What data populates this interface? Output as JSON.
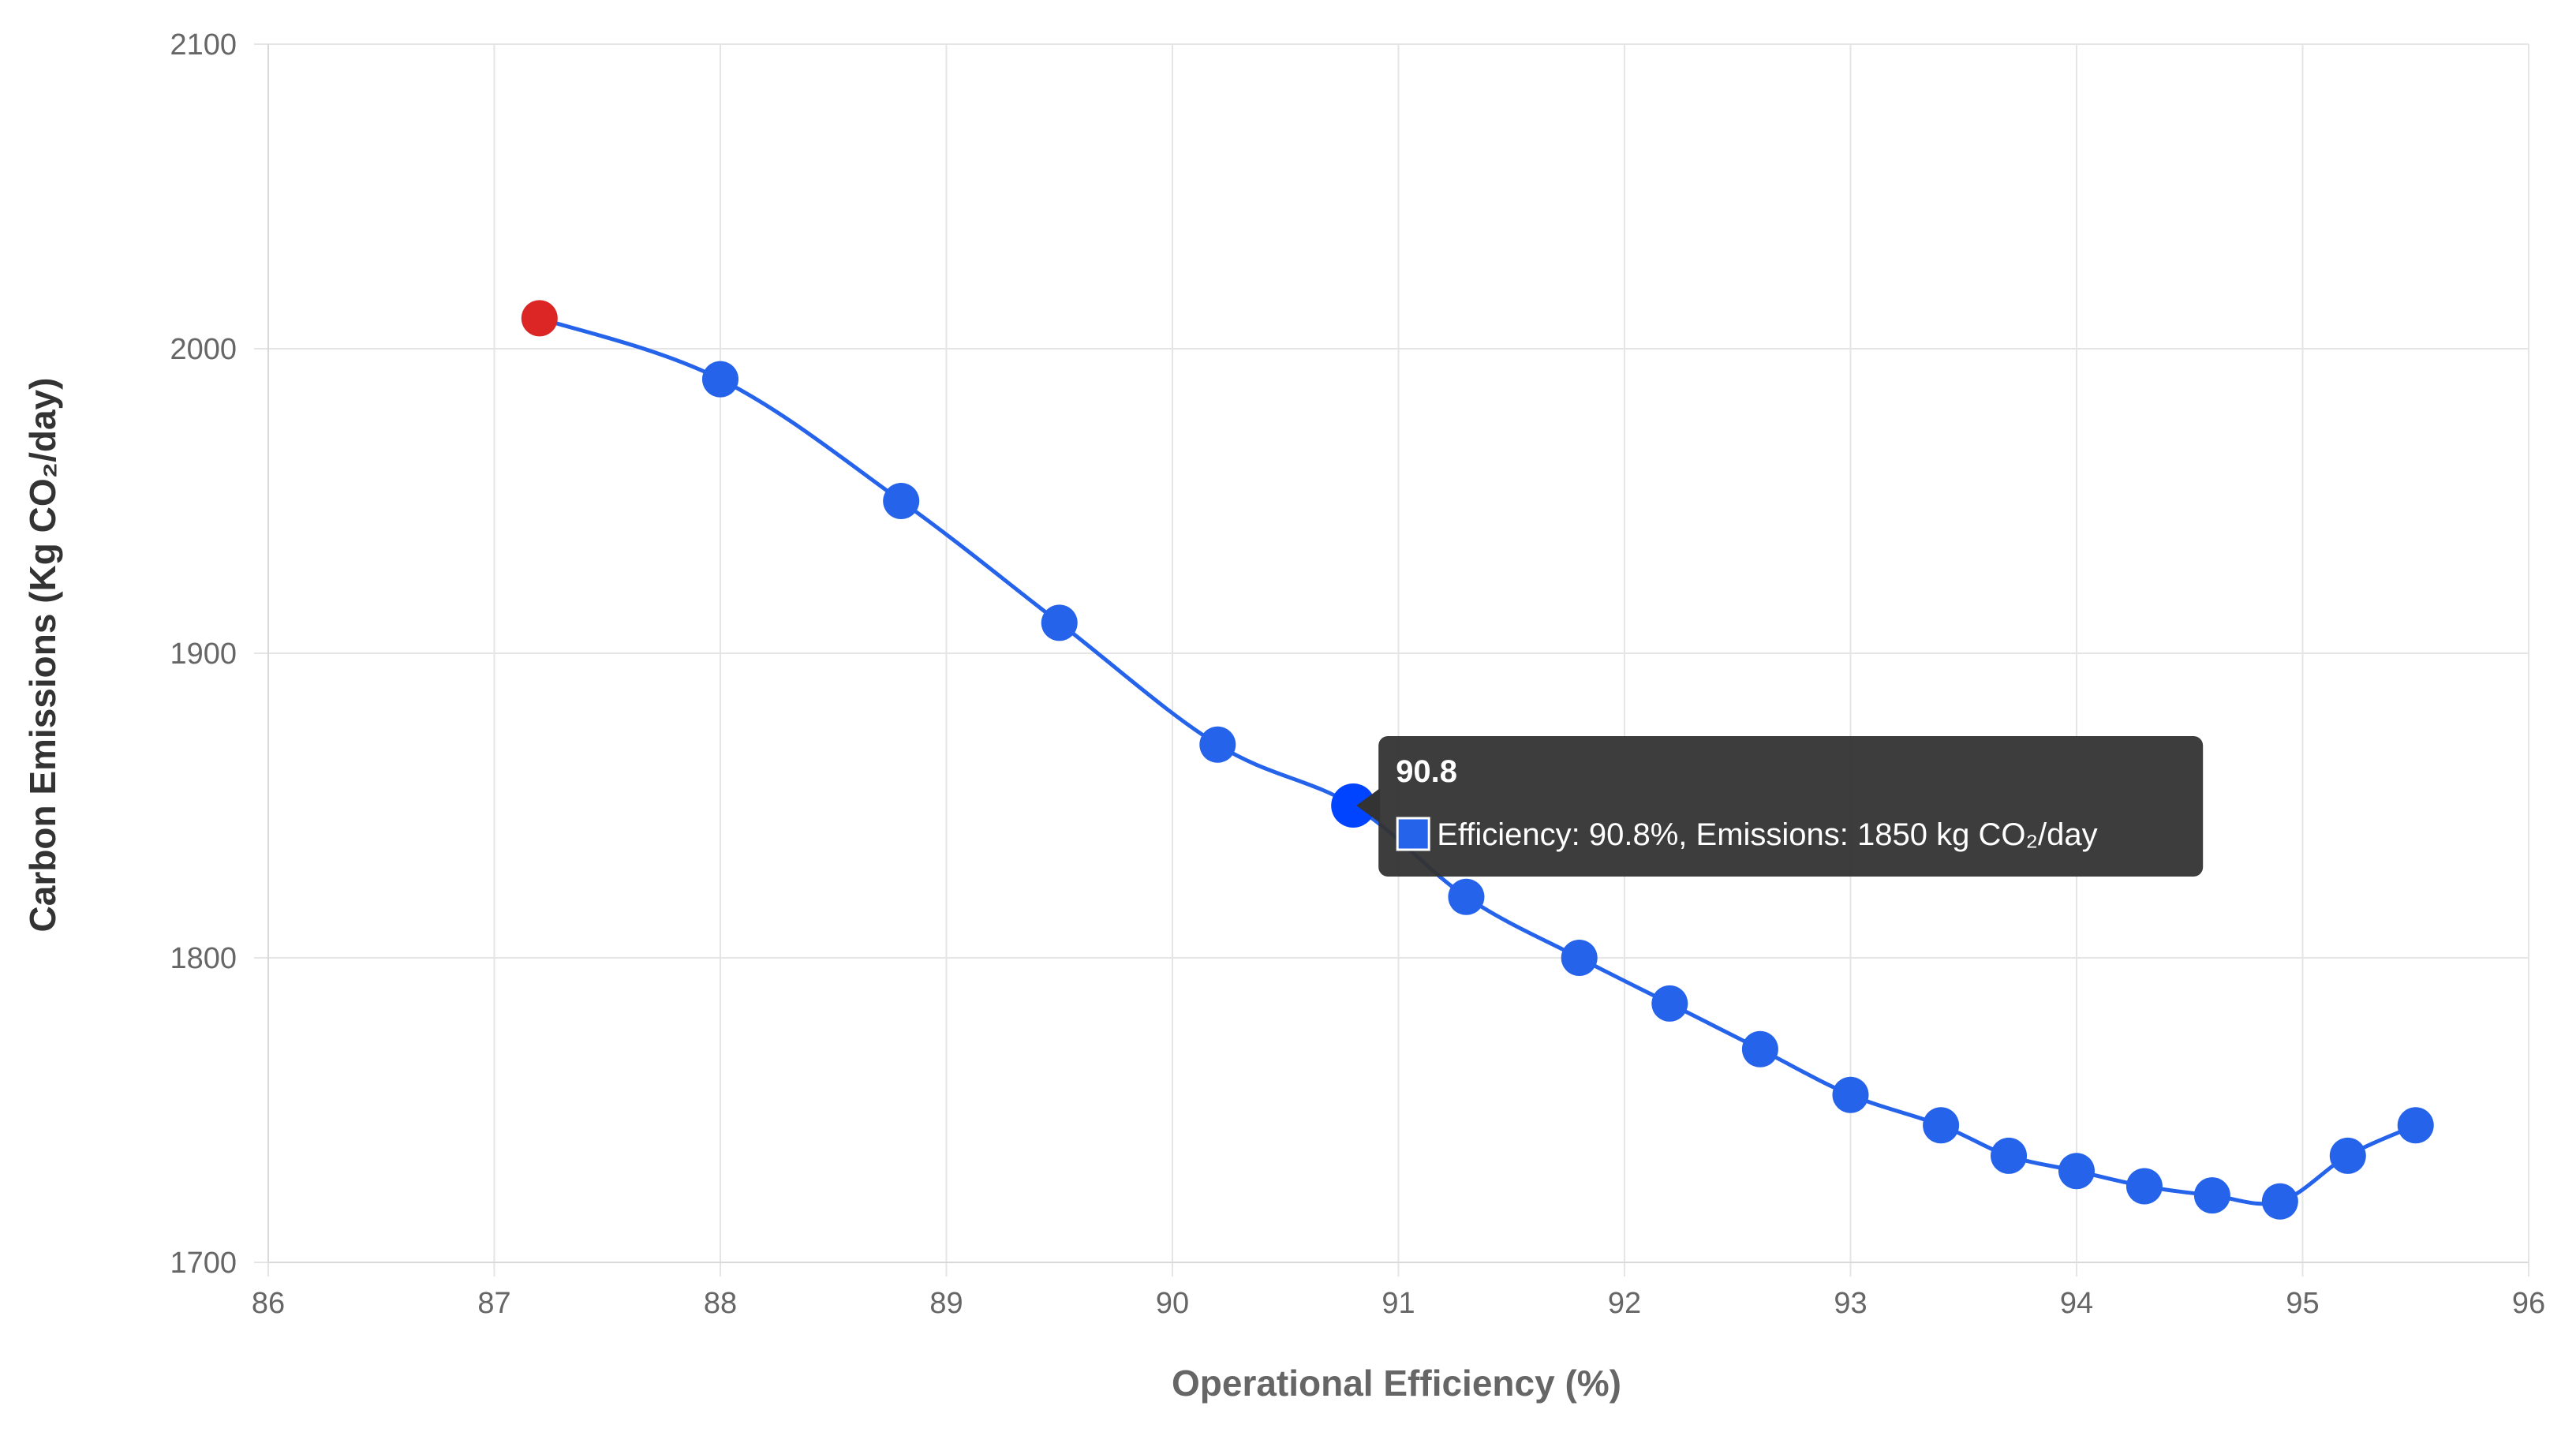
{
  "colors": {
    "series": "#2563eb",
    "highlight": "#dc2626",
    "active": "#0044ff",
    "grid": "#e5e5e5",
    "tooltip_bg": "#333333"
  },
  "chart_data": {
    "type": "line",
    "title": "",
    "xlabel": "Operational Efficiency (%)",
    "ylabel": "Carbon Emissions (Kg CO₂/day)",
    "xlim": [
      86,
      96
    ],
    "ylim": [
      1700,
      2100
    ],
    "x_ticks": [
      86,
      87,
      88,
      89,
      90,
      91,
      92,
      93,
      94,
      95,
      96
    ],
    "y_ticks": [
      1700,
      1800,
      1900,
      2000,
      2100
    ],
    "grid": true,
    "series": [
      {
        "name": "Emissions",
        "points": [
          {
            "x": 87.2,
            "y": 2010
          },
          {
            "x": 88.0,
            "y": 1990
          },
          {
            "x": 88.8,
            "y": 1950
          },
          {
            "x": 89.5,
            "y": 1910
          },
          {
            "x": 90.2,
            "y": 1870
          },
          {
            "x": 90.8,
            "y": 1850
          },
          {
            "x": 91.3,
            "y": 1820
          },
          {
            "x": 91.8,
            "y": 1800
          },
          {
            "x": 92.2,
            "y": 1785
          },
          {
            "x": 92.6,
            "y": 1770
          },
          {
            "x": 93.0,
            "y": 1755
          },
          {
            "x": 93.4,
            "y": 1745
          },
          {
            "x": 93.7,
            "y": 1735
          },
          {
            "x": 94.0,
            "y": 1730
          },
          {
            "x": 94.3,
            "y": 1725
          },
          {
            "x": 94.6,
            "y": 1722
          },
          {
            "x": 94.9,
            "y": 1720
          },
          {
            "x": 95.2,
            "y": 1735
          },
          {
            "x": 95.5,
            "y": 1745
          }
        ]
      }
    ],
    "highlighted_point_index": 0,
    "tooltip": {
      "point_index": 5,
      "title": "90.8",
      "body": "Efficiency: 90.8%, Emissions: 1850 kg CO₂/day"
    }
  }
}
